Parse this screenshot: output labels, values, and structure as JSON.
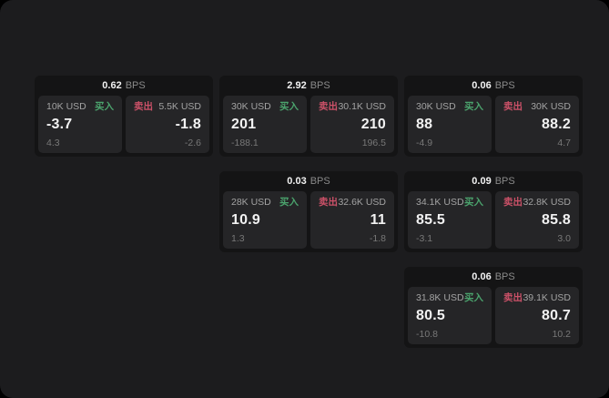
{
  "colors": {
    "surface": "#1c1c1e",
    "card": "#141415",
    "panel": "#252527",
    "buy": "#4ba36d",
    "sell": "#cb5168",
    "text_primary": "#f2f2f2",
    "text_secondary": "#8a8a8a",
    "text_muted": "#a3a3a3",
    "text_dim": "#787878"
  },
  "labels": {
    "bps_unit": "BPS",
    "buy": "买入",
    "sell": "卖出"
  },
  "cards": [
    {
      "bps": "0.62",
      "buy": {
        "size": "10K USD",
        "value": "-3.7",
        "sub": "4.3"
      },
      "sell": {
        "size": "5.5K USD",
        "value": "-1.8",
        "sub": "-2.6"
      }
    },
    {
      "bps": "2.92",
      "buy": {
        "size": "30K USD",
        "value": "201",
        "sub": "-188.1"
      },
      "sell": {
        "size": "30.1K USD",
        "value": "210",
        "sub": "196.5"
      }
    },
    {
      "bps": "0.06",
      "buy": {
        "size": "30K USD",
        "value": "88",
        "sub": "-4.9"
      },
      "sell": {
        "size": "30K USD",
        "value": "88.2",
        "sub": "4.7"
      }
    },
    {
      "bps": "0.03",
      "buy": {
        "size": "28K USD",
        "value": "10.9",
        "sub": "1.3"
      },
      "sell": {
        "size": "32.6K USD",
        "value": "11",
        "sub": "-1.8"
      }
    },
    {
      "bps": "0.09",
      "buy": {
        "size": "34.1K USD",
        "value": "85.5",
        "sub": "-3.1"
      },
      "sell": {
        "size": "32.8K USD",
        "value": "85.8",
        "sub": "3.0"
      }
    },
    {
      "bps": "0.06",
      "buy": {
        "size": "31.8K USD",
        "value": "80.5",
        "sub": "-10.8"
      },
      "sell": {
        "size": "39.1K USD",
        "value": "80.7",
        "sub": "10.2"
      }
    }
  ]
}
